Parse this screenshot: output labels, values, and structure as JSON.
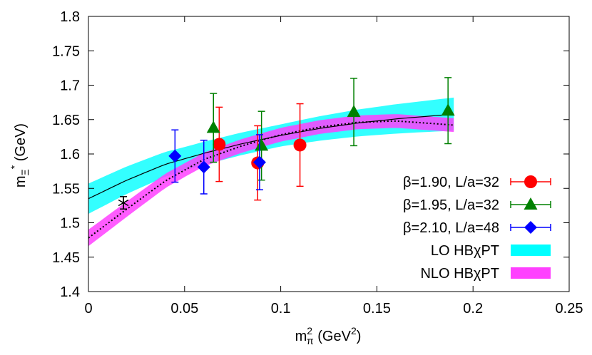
{
  "chart_data": {
    "type": "scatter",
    "title": "",
    "xlabel": {
      "base": "m",
      "sub": "π",
      "sup": "2",
      "unit_pre": " (GeV",
      "unit_sup": "2",
      "unit_post": ")"
    },
    "ylabel": {
      "base": "m",
      "sub": "Ξ",
      "sup": "*",
      "unit": " (GeV)"
    },
    "xlim": [
      0,
      0.25
    ],
    "ylim": [
      1.4,
      1.8
    ],
    "xticks": [
      "0",
      "0.05",
      "0.1",
      "0.15",
      "0.2",
      "0.25"
    ],
    "xtick_values": [
      0,
      0.05,
      0.1,
      0.15,
      0.2,
      0.25
    ],
    "yticks": [
      "1.4",
      "1.45",
      "1.5",
      "1.55",
      "1.6",
      "1.65",
      "1.7",
      "1.75",
      "1.8"
    ],
    "ytick_values": [
      1.4,
      1.45,
      1.5,
      1.55,
      1.6,
      1.65,
      1.7,
      1.75,
      1.8
    ],
    "grid": false,
    "legend_position": "bottom-right",
    "series": [
      {
        "name": "β=1.90, L/a=32",
        "marker": "circle",
        "color": "#ff0000",
        "points": [
          {
            "x": 0.068,
            "y": 1.614,
            "err": 0.054
          },
          {
            "x": 0.088,
            "y": 1.587,
            "err": 0.054
          },
          {
            "x": 0.11,
            "y": 1.613,
            "err": 0.06
          }
        ]
      },
      {
        "name": "β=1.95, L/a=32",
        "marker": "triangle",
        "color": "#008000",
        "points": [
          {
            "x": 0.065,
            "y": 1.638,
            "err": 0.05
          },
          {
            "x": 0.09,
            "y": 1.612,
            "err": 0.05
          },
          {
            "x": 0.138,
            "y": 1.661,
            "err": 0.049
          },
          {
            "x": 0.187,
            "y": 1.663,
            "err": 0.048
          }
        ]
      },
      {
        "name": "β=2.10, L/a=48",
        "marker": "diamond",
        "color": "#0000ff",
        "points": [
          {
            "x": 0.045,
            "y": 1.597,
            "err": 0.038
          },
          {
            "x": 0.06,
            "y": 1.581,
            "err": 0.039
          },
          {
            "x": 0.089,
            "y": 1.588,
            "err": 0.04
          }
        ]
      }
    ],
    "bands": [
      {
        "name": "LO HBχPT",
        "color": "#00ffff",
        "center": [
          [
            0,
            1.535
          ],
          [
            0.02,
            1.562
          ],
          [
            0.04,
            1.585
          ],
          [
            0.06,
            1.601
          ],
          [
            0.08,
            1.615
          ],
          [
            0.1,
            1.627
          ],
          [
            0.12,
            1.637
          ],
          [
            0.14,
            1.645
          ],
          [
            0.16,
            1.651
          ],
          [
            0.19,
            1.658
          ]
        ],
        "halfwidth": [
          [
            0,
            0.022
          ],
          [
            0.05,
            0.017
          ],
          [
            0.1,
            0.016
          ],
          [
            0.19,
            0.024
          ]
        ]
      },
      {
        "name": "NLO HBχPT",
        "color": "#ff40ff",
        "center": [
          [
            0,
            1.478
          ],
          [
            0.02,
            1.52
          ],
          [
            0.04,
            1.561
          ],
          [
            0.06,
            1.592
          ],
          [
            0.08,
            1.612
          ],
          [
            0.1,
            1.628
          ],
          [
            0.12,
            1.639
          ],
          [
            0.14,
            1.646
          ],
          [
            0.16,
            1.648
          ],
          [
            0.19,
            1.642
          ]
        ],
        "halfwidth": [
          [
            0,
            0.012
          ],
          [
            0.05,
            0.01
          ],
          [
            0.1,
            0.01
          ],
          [
            0.19,
            0.01
          ]
        ]
      }
    ],
    "physical_point": {
      "x": 0.0182,
      "y": 1.529,
      "err": 0.009,
      "marker": "asterisk",
      "color": "#000000"
    }
  }
}
